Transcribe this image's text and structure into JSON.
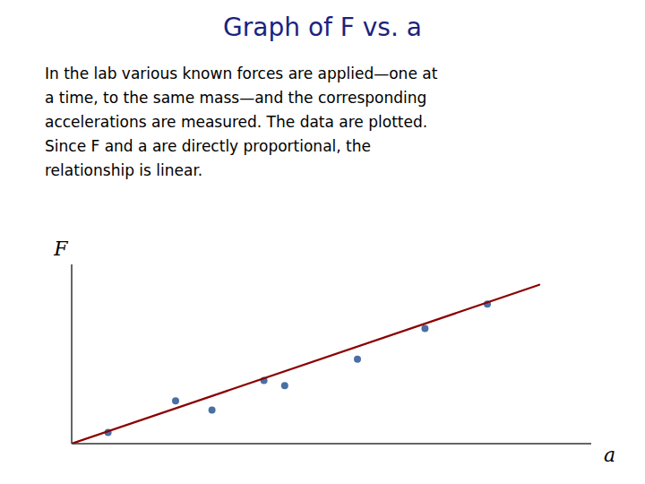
{
  "chart_data": {
    "type": "scatter",
    "title": "Graph of F vs. a",
    "annotations": [
      "In the lab various known forces are applied—one at",
      "a time, to the same mass—and the corresponding",
      "accelerations are measured.  The data are plotted.",
      "Since F and a are directly proportional, the",
      "relationship is linear."
    ],
    "xlabel": "a",
    "ylabel": "F",
    "series": [
      {
        "type": "scatter",
        "marker": "circle",
        "color": "#4a6fa5",
        "x": [
          0.07,
          0.2,
          0.27,
          0.37,
          0.41,
          0.55,
          0.68,
          0.8
        ],
        "values": [
          0.055,
          0.21,
          0.165,
          0.31,
          0.285,
          0.415,
          0.565,
          0.685
        ]
      },
      {
        "type": "line",
        "line_style": "solid",
        "color": "#8b0000",
        "x": [
          0.0,
          0.9
        ],
        "values": [
          0.0,
          0.78
        ]
      }
    ],
    "xlim": [
      0,
      1.0
    ],
    "ylim": [
      0,
      0.88
    ],
    "tick_labels": false,
    "grid": false
  }
}
